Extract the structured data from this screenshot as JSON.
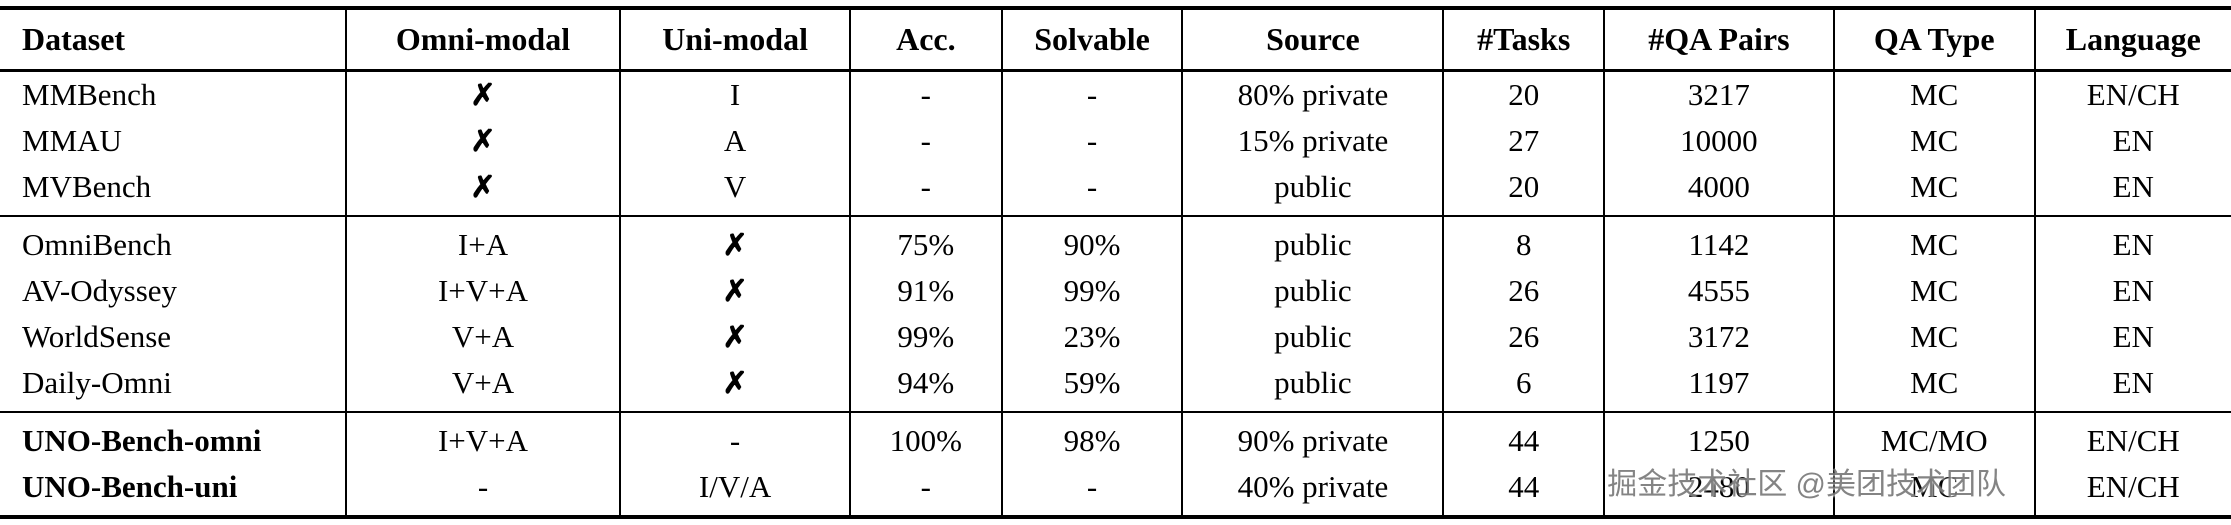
{
  "table": {
    "columns": [
      "Dataset",
      "Omni-modal",
      "Uni-modal",
      "Acc.",
      "Solvable",
      "Source",
      "#Tasks",
      "#QA Pairs",
      "QA Type",
      "Language"
    ],
    "groups": [
      {
        "rows": [
          {
            "bold": false,
            "cells": [
              "MMBench",
              "✗",
              "I",
              "-",
              "-",
              "80% private",
              "20",
              "3217",
              "MC",
              "EN/CH"
            ]
          },
          {
            "bold": false,
            "cells": [
              "MMAU",
              "✗",
              "A",
              "-",
              "-",
              "15% private",
              "27",
              "10000",
              "MC",
              "EN"
            ]
          },
          {
            "bold": false,
            "cells": [
              "MVBench",
              "✗",
              "V",
              "-",
              "-",
              "public",
              "20",
              "4000",
              "MC",
              "EN"
            ]
          }
        ]
      },
      {
        "rows": [
          {
            "bold": false,
            "cells": [
              "OmniBench",
              "I+A",
              "✗",
              "75%",
              "90%",
              "public",
              "8",
              "1142",
              "MC",
              "EN"
            ]
          },
          {
            "bold": false,
            "cells": [
              "AV-Odyssey",
              "I+V+A",
              "✗",
              "91%",
              "99%",
              "public",
              "26",
              "4555",
              "MC",
              "EN"
            ]
          },
          {
            "bold": false,
            "cells": [
              "WorldSense",
              "V+A",
              "✗",
              "99%",
              "23%",
              "public",
              "26",
              "3172",
              "MC",
              "EN"
            ]
          },
          {
            "bold": false,
            "cells": [
              "Daily-Omni",
              "V+A",
              "✗",
              "94%",
              "59%",
              "public",
              "6",
              "1197",
              "MC",
              "EN"
            ]
          }
        ]
      },
      {
        "rows": [
          {
            "bold": true,
            "cells": [
              "UNO-Bench-omni",
              "I+V+A",
              "-",
              "100%",
              "98%",
              "90% private",
              "44",
              "1250",
              "MC/MO",
              "EN/CH"
            ]
          },
          {
            "bold": true,
            "cells": [
              "UNO-Bench-uni",
              "-",
              "I/V/A",
              "-",
              "-",
              "40% private",
              "44",
              "2480",
              "MC",
              "EN/CH"
            ]
          }
        ]
      }
    ]
  },
  "watermark": {
    "text": "掘金技术社区 @美团技术团队"
  }
}
